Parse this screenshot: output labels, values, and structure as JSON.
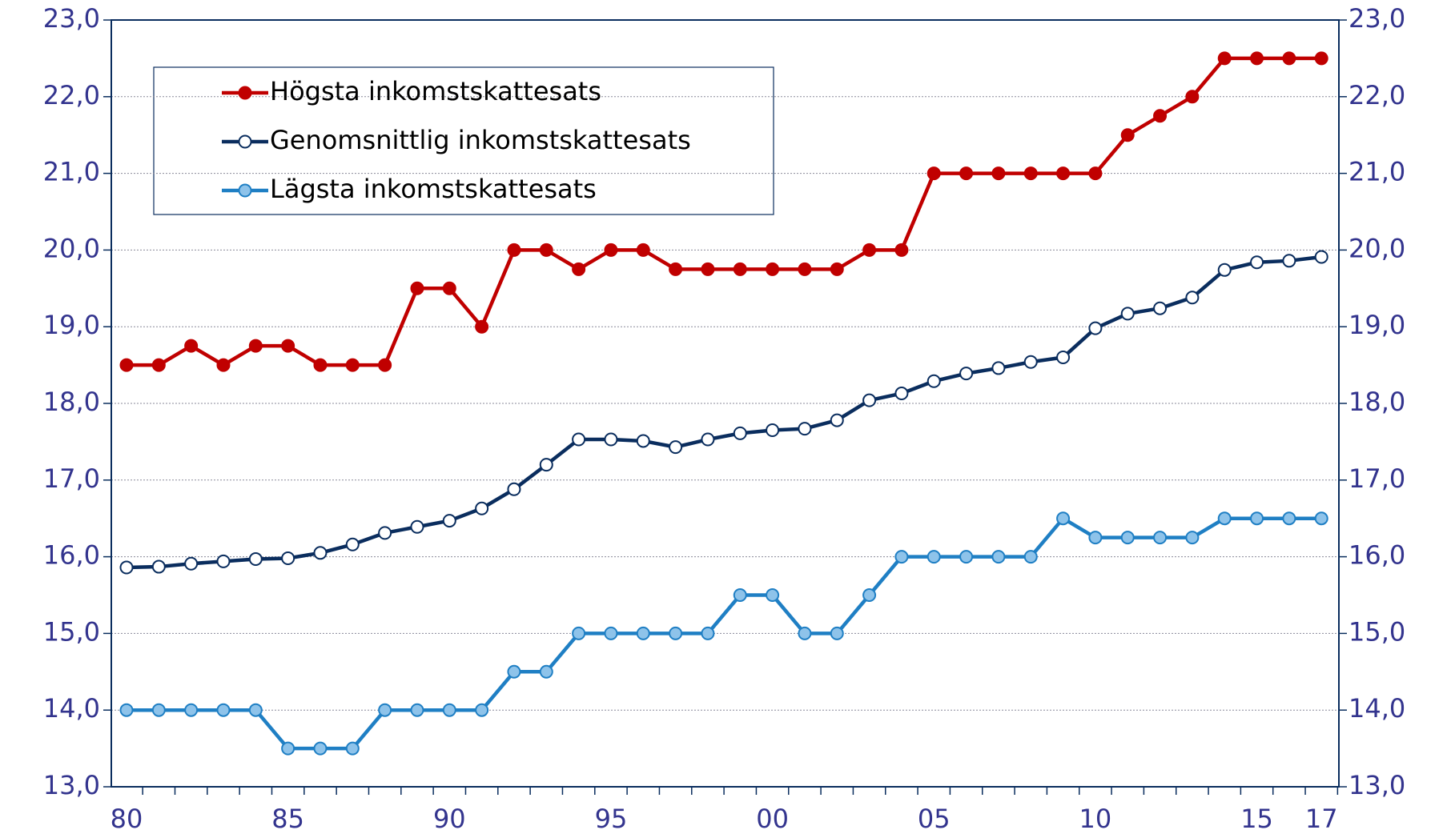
{
  "chart_data": {
    "type": "line",
    "categories": [
      "80",
      null,
      null,
      null,
      null,
      "85",
      null,
      null,
      null,
      null,
      "90",
      null,
      null,
      null,
      null,
      "95",
      null,
      null,
      null,
      null,
      "00",
      null,
      null,
      null,
      null,
      "05",
      null,
      null,
      null,
      null,
      "10",
      null,
      null,
      null,
      null,
      "15",
      null,
      "17"
    ],
    "series": [
      {
        "name": "Högsta inkomstskattesats",
        "color": "#c00000",
        "marker_fill": "#c00000",
        "values": [
          18.5,
          18.5,
          18.75,
          18.5,
          18.75,
          18.75,
          18.5,
          18.5,
          18.5,
          19.5,
          19.5,
          19.0,
          20.0,
          20.0,
          19.75,
          20.0,
          20.0,
          19.75,
          19.75,
          19.75,
          19.75,
          19.75,
          19.75,
          20.0,
          20.0,
          21.0,
          21.0,
          21.0,
          21.0,
          21.0,
          21.0,
          21.5,
          21.75,
          22.0,
          22.5,
          22.5,
          22.5,
          22.5
        ]
      },
      {
        "name": "Genomsnittlig inkomstskattesats",
        "color": "#0a2d5e",
        "marker_fill": "#ffffff",
        "values": [
          15.86,
          15.87,
          15.91,
          15.94,
          15.97,
          15.98,
          16.05,
          16.16,
          16.31,
          16.39,
          16.47,
          16.63,
          16.88,
          17.2,
          17.53,
          17.53,
          17.51,
          17.43,
          17.53,
          17.61,
          17.65,
          17.67,
          17.78,
          18.04,
          18.13,
          18.29,
          18.39,
          18.46,
          18.54,
          18.6,
          18.98,
          19.17,
          19.24,
          19.38,
          19.74,
          19.84,
          19.86,
          19.91
        ]
      },
      {
        "name": "Lägsta inkomstskattesats",
        "color": "#1f7fc4",
        "marker_fill": "#8ec3ea",
        "values": [
          14.0,
          14.0,
          14.0,
          14.0,
          14.0,
          13.5,
          13.5,
          13.5,
          14.0,
          14.0,
          14.0,
          14.0,
          14.5,
          14.5,
          15.0,
          15.0,
          15.0,
          15.0,
          15.0,
          15.5,
          15.5,
          15.0,
          15.0,
          15.5,
          16.0,
          16.0,
          16.0,
          16.0,
          16.0,
          16.5,
          16.25,
          16.25,
          16.25,
          16.25,
          16.5,
          16.5,
          16.5,
          16.5
        ]
      }
    ],
    "ylim": [
      13,
      23
    ],
    "yticks": [
      {
        "value": 13,
        "label": "13,0"
      },
      {
        "value": 14,
        "label": "14,0"
      },
      {
        "value": 15,
        "label": "15,0"
      },
      {
        "value": 16,
        "label": "16,0"
      },
      {
        "value": 17,
        "label": "17,0"
      },
      {
        "value": 18,
        "label": "18,0"
      },
      {
        "value": 19,
        "label": "19,0"
      },
      {
        "value": 20,
        "label": "20,0"
      },
      {
        "value": 21,
        "label": "21,0"
      },
      {
        "value": 22,
        "label": "22,0"
      },
      {
        "value": 23,
        "label": "23,0"
      }
    ],
    "grid": true,
    "legend": "top-left"
  }
}
